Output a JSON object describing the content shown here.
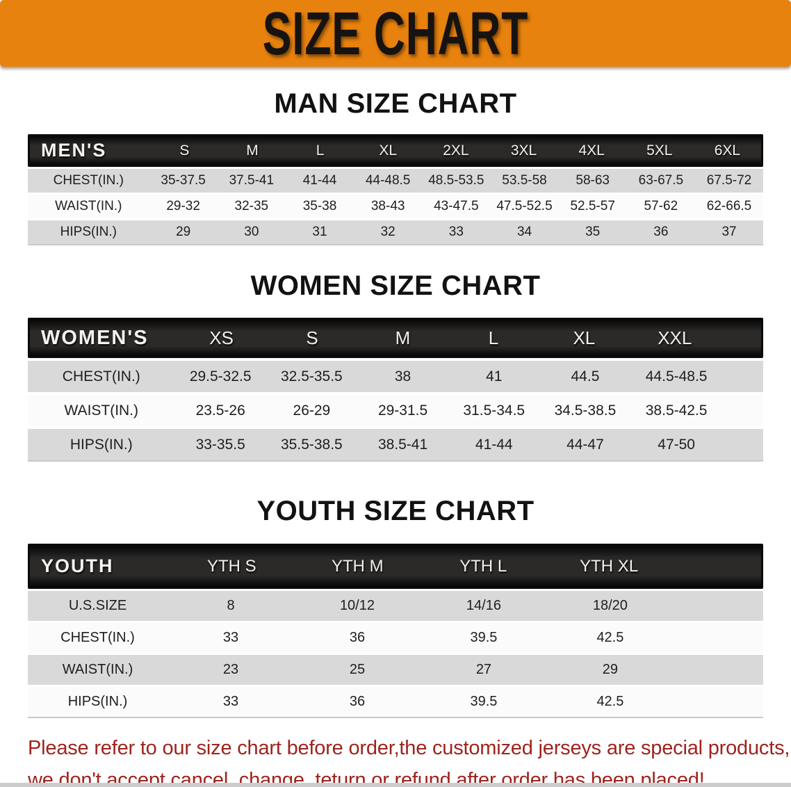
{
  "banner": {
    "title": "SIZE CHART",
    "bg_color": "#e8820e",
    "text_color": "#161311"
  },
  "sections": [
    {
      "id": "men",
      "title": "MAN SIZE CHART",
      "label": "MEN'S",
      "sizes": [
        "S",
        "M",
        "L",
        "XL",
        "2XL",
        "3XL",
        "4XL",
        "5XL",
        "6XL"
      ],
      "rows": [
        {
          "label": "CHEST(IN.)",
          "values": [
            "35-37.5",
            "37.5-41",
            "41-44",
            "44-48.5",
            "48.5-53.5",
            "53.5-58",
            "58-63",
            "63-67.5",
            "67.5-72"
          ]
        },
        {
          "label": "WAIST(IN.)",
          "values": [
            "29-32",
            "32-35",
            "35-38",
            "38-43",
            "43-47.5",
            "47.5-52.5",
            "52.5-57",
            "57-62",
            "62-66.5"
          ]
        },
        {
          "label": "HIPS(IN.)",
          "values": [
            "29",
            "30",
            "31",
            "32",
            "33",
            "34",
            "35",
            "36",
            "37"
          ]
        }
      ]
    },
    {
      "id": "women",
      "title": "WOMEN SIZE CHART",
      "label": "WOMEN'S",
      "sizes": [
        "XS",
        "S",
        "M",
        "L",
        "XL",
        "XXL"
      ],
      "rows": [
        {
          "label": "CHEST(IN.)",
          "values": [
            "29.5-32.5",
            "32.5-35.5",
            "38",
            "41",
            "44.5",
            "44.5-48.5"
          ]
        },
        {
          "label": "WAIST(IN.)",
          "values": [
            "23.5-26",
            "26-29",
            "29-31.5",
            "31.5-34.5",
            "34.5-38.5",
            "38.5-42.5"
          ]
        },
        {
          "label": "HIPS(IN.)",
          "values": [
            "33-35.5",
            "35.5-38.5",
            "38.5-41",
            "41-44",
            "44-47",
            "47-50"
          ]
        }
      ]
    },
    {
      "id": "youth",
      "title": "YOUTH SIZE CHART",
      "label": "YOUTH",
      "sizes": [
        "YTH S",
        "YTH M",
        "YTH L",
        "YTH XL"
      ],
      "rows": [
        {
          "label": "U.S.SIZE",
          "values": [
            "8",
            "10/12",
            "14/16",
            "18/20"
          ]
        },
        {
          "label": "CHEST(IN.)",
          "values": [
            "33",
            "36",
            "39.5",
            "42.5"
          ]
        },
        {
          "label": "WAIST(IN.)",
          "values": [
            "23",
            "25",
            "27",
            "29"
          ]
        },
        {
          "label": "HIPS(IN.)",
          "values": [
            "33",
            "36",
            "39.5",
            "42.5"
          ]
        }
      ]
    }
  ],
  "note": {
    "color": "#9e231d",
    "lines": [
      "Please refer to our size chart before order,the customized jerseys are special products,",
      "we don't accept cancel, change, teturn or refund after order has been placed!"
    ]
  }
}
